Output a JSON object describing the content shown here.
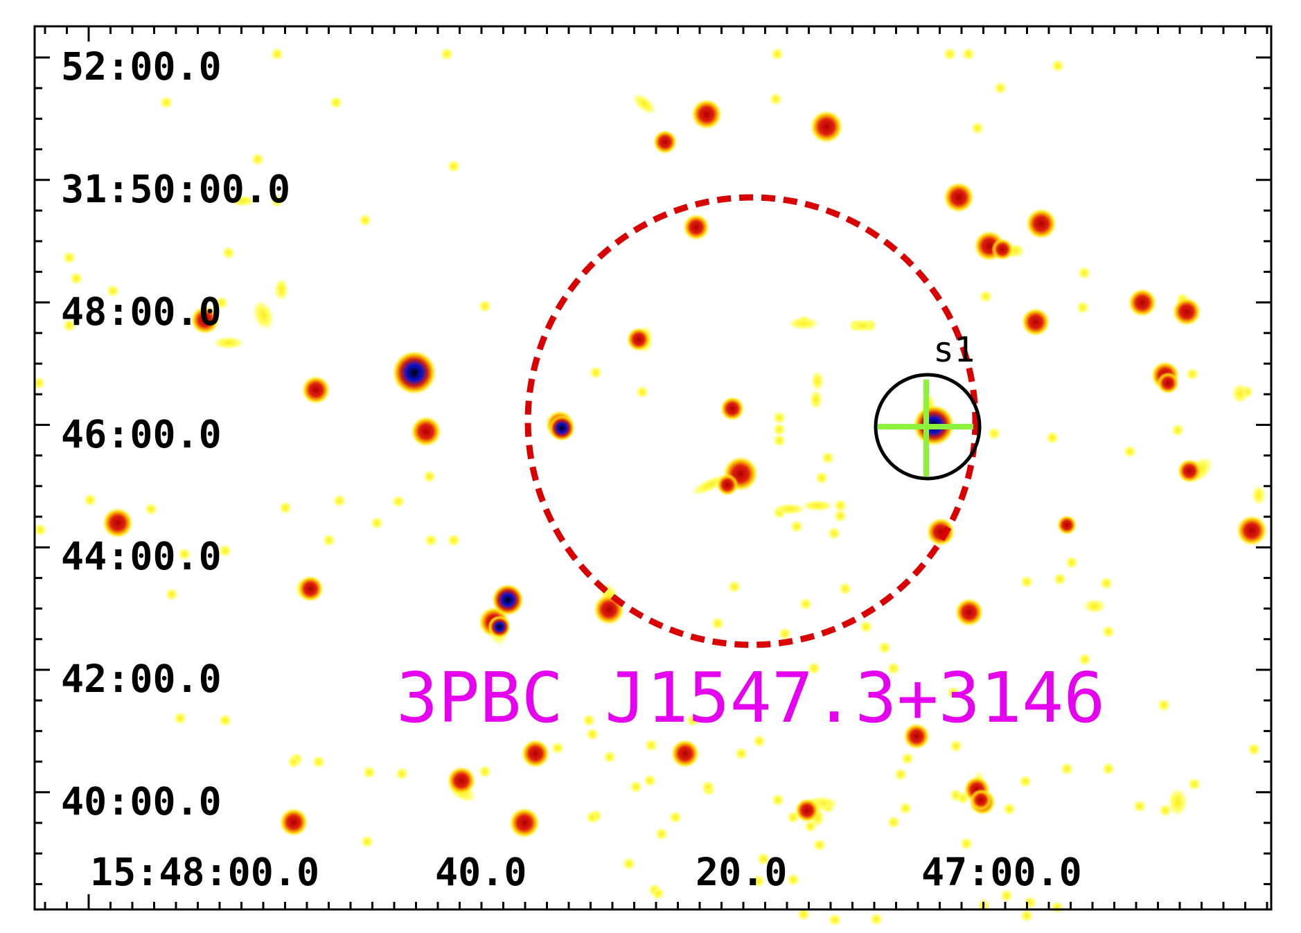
{
  "title": "3PBC J1547.3+3146",
  "dec_ticks": [
    "52:00.0",
    "31:50:00.0",
    "48:00.0",
    "46:00.0",
    "44:00.0",
    "42:00.0",
    "40:00.0"
  ],
  "ra_ticks": [
    "15:48:00.0",
    "40.0",
    "20.0",
    "47:00.0"
  ],
  "source": {
    "label": "s1"
  },
  "colors": {
    "title": "#e600f0",
    "error_circle": "#d80000",
    "source_circle": "#000000",
    "crosshair": "#8cf23c",
    "faint_source": "#ffff3a",
    "medium_source": "#d21a0a",
    "bright_source": "#0a0ad2",
    "frame": "#000000"
  }
}
